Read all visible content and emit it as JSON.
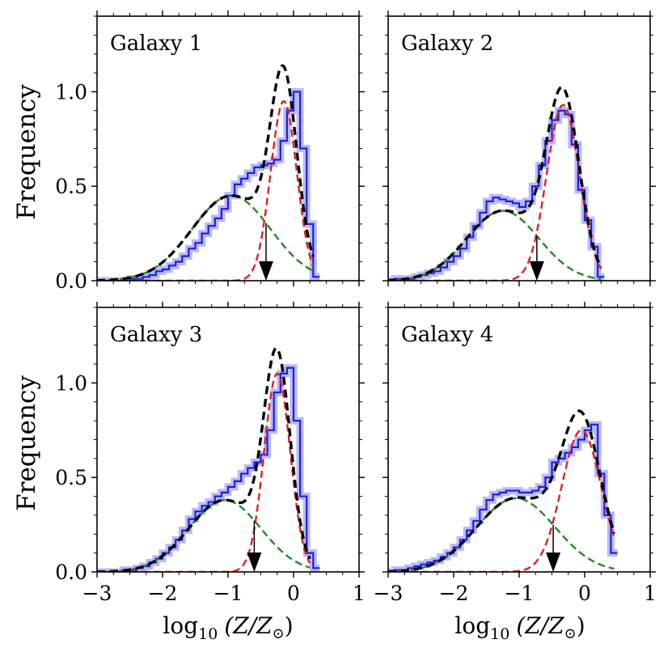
{
  "figure": {
    "ylabel": "Frequency",
    "xlabel_prefix": "log",
    "xlabel_sub": "10",
    "xlabel_var": "(Z/Z",
    "xlabel_sun": "⊙",
    "xlabel_close": ")"
  },
  "colors": {
    "histogram": "#1f1fdc",
    "histogram_band": "#8080ff",
    "total_fit": "#000000",
    "metal_rich": "#e02020",
    "metal_poor": "#218a21",
    "arrow": "#000000"
  },
  "chart_data": [
    {
      "type": "line",
      "title": "Galaxy 1",
      "xlim": [
        -3,
        1
      ],
      "ylim": [
        0,
        1.4
      ],
      "xticks": [
        -3,
        -2,
        -1,
        0,
        1
      ],
      "xtick_labels": [
        "−3",
        "−2",
        "−1",
        "0",
        "1"
      ],
      "yticks": [
        0.0,
        0.5,
        1.0
      ],
      "ytick_labels": [
        "0.0",
        "0.5",
        "1.0"
      ],
      "histogram": {
        "x": [
          -3.0,
          -2.9,
          -2.8,
          -2.7,
          -2.6,
          -2.5,
          -2.4,
          -2.3,
          -2.2,
          -2.1,
          -2.0,
          -1.9,
          -1.8,
          -1.7,
          -1.6,
          -1.5,
          -1.4,
          -1.3,
          -1.2,
          -1.1,
          -1.0,
          -0.9,
          -0.8,
          -0.7,
          -0.6,
          -0.5,
          -0.4,
          -0.3,
          -0.2,
          -0.1,
          0.0,
          0.1,
          0.2,
          0.3
        ],
        "y": [
          0.0,
          0.0,
          0.0,
          0.0,
          0.0,
          0.01,
          0.01,
          0.02,
          0.03,
          0.05,
          0.06,
          0.08,
          0.1,
          0.13,
          0.17,
          0.2,
          0.25,
          0.29,
          0.33,
          0.38,
          0.45,
          0.51,
          0.54,
          0.57,
          0.6,
          0.61,
          0.62,
          0.64,
          0.74,
          0.9,
          1.0,
          0.7,
          0.3,
          0.02
        ]
      },
      "metal_poor": {
        "amp": 0.45,
        "mu": -0.95,
        "sigma": 0.6
      },
      "metal_rich": {
        "amp": 0.95,
        "mu": -0.15,
        "sigma": 0.2
      },
      "total_fit_xrange": [
        -3,
        0.3
      ],
      "arrow_x": -0.42
    },
    {
      "type": "line",
      "title": "Galaxy 2",
      "xlim": [
        -3,
        1
      ],
      "ylim": [
        0,
        1.4
      ],
      "xticks": [
        -3,
        -2,
        -1,
        0,
        1
      ],
      "xtick_labels": [
        "−3",
        "−2",
        "−1",
        "0",
        "1"
      ],
      "yticks": [
        0.0,
        0.5,
        1.0
      ],
      "ytick_labels": [
        "",
        "",
        ""
      ],
      "histogram": {
        "x": [
          -3.0,
          -2.9,
          -2.8,
          -2.7,
          -2.6,
          -2.5,
          -2.4,
          -2.3,
          -2.2,
          -2.1,
          -2.0,
          -1.9,
          -1.8,
          -1.7,
          -1.6,
          -1.5,
          -1.4,
          -1.3,
          -1.2,
          -1.1,
          -1.0,
          -0.9,
          -0.8,
          -0.7,
          -0.6,
          -0.5,
          -0.4,
          -0.3,
          -0.2,
          -0.1,
          0.0,
          0.1,
          0.2
        ],
        "y": [
          0.0,
          0.01,
          0.01,
          0.01,
          0.02,
          0.03,
          0.04,
          0.05,
          0.07,
          0.1,
          0.13,
          0.17,
          0.23,
          0.29,
          0.36,
          0.42,
          0.44,
          0.43,
          0.42,
          0.41,
          0.39,
          0.42,
          0.5,
          0.61,
          0.74,
          0.85,
          0.9,
          0.88,
          0.72,
          0.48,
          0.32,
          0.18,
          0.02
        ]
      },
      "metal_poor": {
        "amp": 0.37,
        "mu": -1.25,
        "sigma": 0.55
      },
      "metal_rich": {
        "amp": 0.93,
        "mu": -0.33,
        "sigma": 0.25
      },
      "total_fit_xrange": [
        -3,
        0.25
      ],
      "arrow_x": -0.73
    },
    {
      "type": "line",
      "title": "Galaxy 3",
      "xlim": [
        -3,
        1
      ],
      "ylim": [
        0,
        1.4
      ],
      "xticks": [
        -3,
        -2,
        -1,
        0,
        1
      ],
      "xtick_labels": [
        "−3",
        "−2",
        "−1",
        "0",
        "1"
      ],
      "yticks": [
        0.0,
        0.5,
        1.0
      ],
      "ytick_labels": [
        "0.0",
        "0.5",
        "1.0"
      ],
      "histogram": {
        "x": [
          -3.0,
          -2.9,
          -2.8,
          -2.7,
          -2.6,
          -2.5,
          -2.4,
          -2.3,
          -2.2,
          -2.1,
          -2.0,
          -1.9,
          -1.8,
          -1.7,
          -1.6,
          -1.5,
          -1.4,
          -1.3,
          -1.2,
          -1.1,
          -1.0,
          -0.9,
          -0.8,
          -0.7,
          -0.6,
          -0.5,
          -0.4,
          -0.3,
          -0.2,
          -0.1,
          0.0,
          0.1,
          0.2,
          0.3
        ],
        "y": [
          0.0,
          0.0,
          0.0,
          0.0,
          0.01,
          0.01,
          0.02,
          0.03,
          0.05,
          0.07,
          0.1,
          0.13,
          0.17,
          0.22,
          0.28,
          0.32,
          0.35,
          0.37,
          0.4,
          0.42,
          0.45,
          0.48,
          0.52,
          0.55,
          0.58,
          0.62,
          0.75,
          0.95,
          1.05,
          1.08,
          0.8,
          0.4,
          0.1,
          0.02
        ]
      },
      "metal_poor": {
        "amp": 0.38,
        "mu": -1.05,
        "sigma": 0.55
      },
      "metal_rich": {
        "amp": 1.05,
        "mu": -0.25,
        "sigma": 0.2
      },
      "total_fit_xrange": [
        -3,
        0.25
      ],
      "arrow_x": -0.6
    },
    {
      "type": "line",
      "title": "Galaxy 4",
      "xlim": [
        -3,
        1
      ],
      "ylim": [
        0,
        1.4
      ],
      "xticks": [
        -3,
        -2,
        -1,
        0,
        1
      ],
      "xtick_labels": [
        "−3",
        "−2",
        "−1",
        "0",
        "1"
      ],
      "yticks": [
        0.0,
        0.5,
        1.0
      ],
      "ytick_labels": [
        "",
        "",
        ""
      ],
      "histogram": {
        "x": [
          -3.0,
          -2.9,
          -2.8,
          -2.7,
          -2.6,
          -2.5,
          -2.4,
          -2.3,
          -2.2,
          -2.1,
          -2.0,
          -1.9,
          -1.8,
          -1.7,
          -1.6,
          -1.5,
          -1.4,
          -1.3,
          -1.2,
          -1.1,
          -1.0,
          -0.9,
          -0.8,
          -0.7,
          -0.6,
          -0.5,
          -0.4,
          -0.3,
          -0.2,
          -0.1,
          0.0,
          0.1,
          0.2,
          0.3,
          0.4
        ],
        "y": [
          0.0,
          0.01,
          0.01,
          0.02,
          0.03,
          0.04,
          0.05,
          0.06,
          0.08,
          0.1,
          0.13,
          0.17,
          0.22,
          0.27,
          0.33,
          0.38,
          0.41,
          0.42,
          0.43,
          0.43,
          0.42,
          0.42,
          0.43,
          0.45,
          0.5,
          0.58,
          0.6,
          0.63,
          0.66,
          0.7,
          0.75,
          0.78,
          0.52,
          0.3,
          0.1
        ]
      },
      "metal_poor": {
        "amp": 0.39,
        "mu": -1.05,
        "sigma": 0.6
      },
      "metal_rich": {
        "amp": 0.75,
        "mu": -0.05,
        "sigma": 0.3
      },
      "total_fit_xrange": [
        -3,
        0.45
      ],
      "arrow_x": -0.48
    }
  ]
}
